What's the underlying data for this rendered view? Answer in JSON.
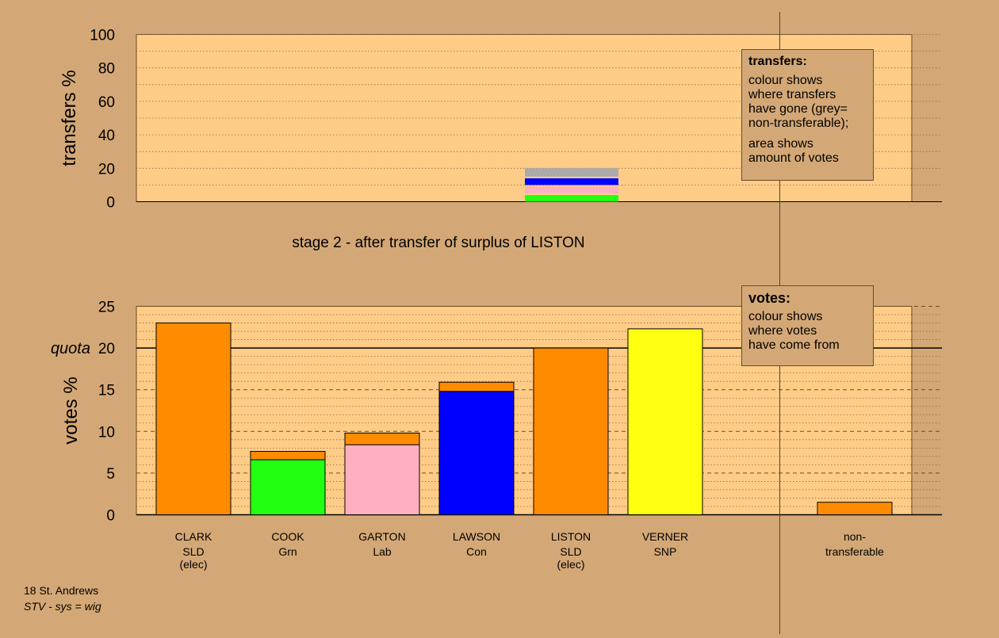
{
  "colors": {
    "background": "#D4A876",
    "plot_bg": "#FFCC88",
    "SLD": "#FF8C00",
    "Grn": "#22FF11",
    "Lab": "#FFB0C0",
    "Con": "#0000FF",
    "SNP": "#FFFF11",
    "non_transferable": "#AAAAAA"
  },
  "stage_label": "stage 2 - after transfer of surplus of LISTON",
  "transfers_legend": {
    "title": "transfers:",
    "line1": "colour shows",
    "line2": "where transfers",
    "line3": "have gone (grey=",
    "line4": "non-transferable);",
    "line5": "area shows",
    "line6": "amount of votes"
  },
  "votes_legend": {
    "title": "votes:",
    "line1": "colour shows",
    "line2": "where votes",
    "line3": "have come from"
  },
  "footer": {
    "line1": "18 St. Andrews",
    "line2": "STV - sys = wig"
  },
  "chart_data": [
    {
      "type": "bar",
      "name": "transfers",
      "ylabel": "transfers %",
      "ylim": [
        0,
        100
      ],
      "yticks": [
        0,
        20,
        40,
        60,
        80,
        100
      ],
      "grid": "dotted",
      "legend_position": "top-right",
      "bar": {
        "segments": [
          {
            "party": "Grn",
            "from": 0,
            "to": 4
          },
          {
            "party": "Lab",
            "from": 5,
            "to": 9
          },
          {
            "party": "Con",
            "from": 10,
            "to": 14
          },
          {
            "party": "non_transferable",
            "from": 15,
            "to": 20
          }
        ]
      }
    },
    {
      "type": "bar",
      "name": "votes",
      "ylabel": "votes %",
      "ylim": [
        0,
        25
      ],
      "yticks": [
        0,
        5,
        10,
        15,
        20,
        25
      ],
      "quota": {
        "label": "quota",
        "value": 20
      },
      "grid": "dotted",
      "legend_position": "top-right",
      "categories": [
        {
          "name": "CLARK",
          "party": "SLD",
          "status": "(elec)"
        },
        {
          "name": "COOK",
          "party": "Grn",
          "status": ""
        },
        {
          "name": "GARTON",
          "party": "Lab",
          "status": ""
        },
        {
          "name": "LAWSON",
          "party": "Con",
          "status": ""
        },
        {
          "name": "LISTON",
          "party": "SLD",
          "status": "(elec)"
        },
        {
          "name": "VERNER",
          "party": "SNP",
          "status": ""
        },
        {
          "name": "non-",
          "party": "transferable",
          "status": ""
        }
      ],
      "bars": [
        {
          "segments": [
            {
              "party": "SLD",
              "value": 23.0
            }
          ]
        },
        {
          "segments": [
            {
              "party": "Grn",
              "value": 6.6
            },
            {
              "party": "SLD",
              "value": 1.0
            }
          ]
        },
        {
          "segments": [
            {
              "party": "Lab",
              "value": 8.4
            },
            {
              "party": "SLD",
              "value": 1.4
            }
          ]
        },
        {
          "segments": [
            {
              "party": "Con",
              "value": 14.8
            },
            {
              "party": "SLD",
              "value": 1.1
            }
          ]
        },
        {
          "segments": [
            {
              "party": "SLD",
              "value": 20.0
            }
          ]
        },
        {
          "segments": [
            {
              "party": "SNP",
              "value": 22.3
            }
          ]
        },
        {
          "segments": [
            {
              "party": "SLD",
              "value": 1.5
            }
          ]
        }
      ]
    }
  ]
}
